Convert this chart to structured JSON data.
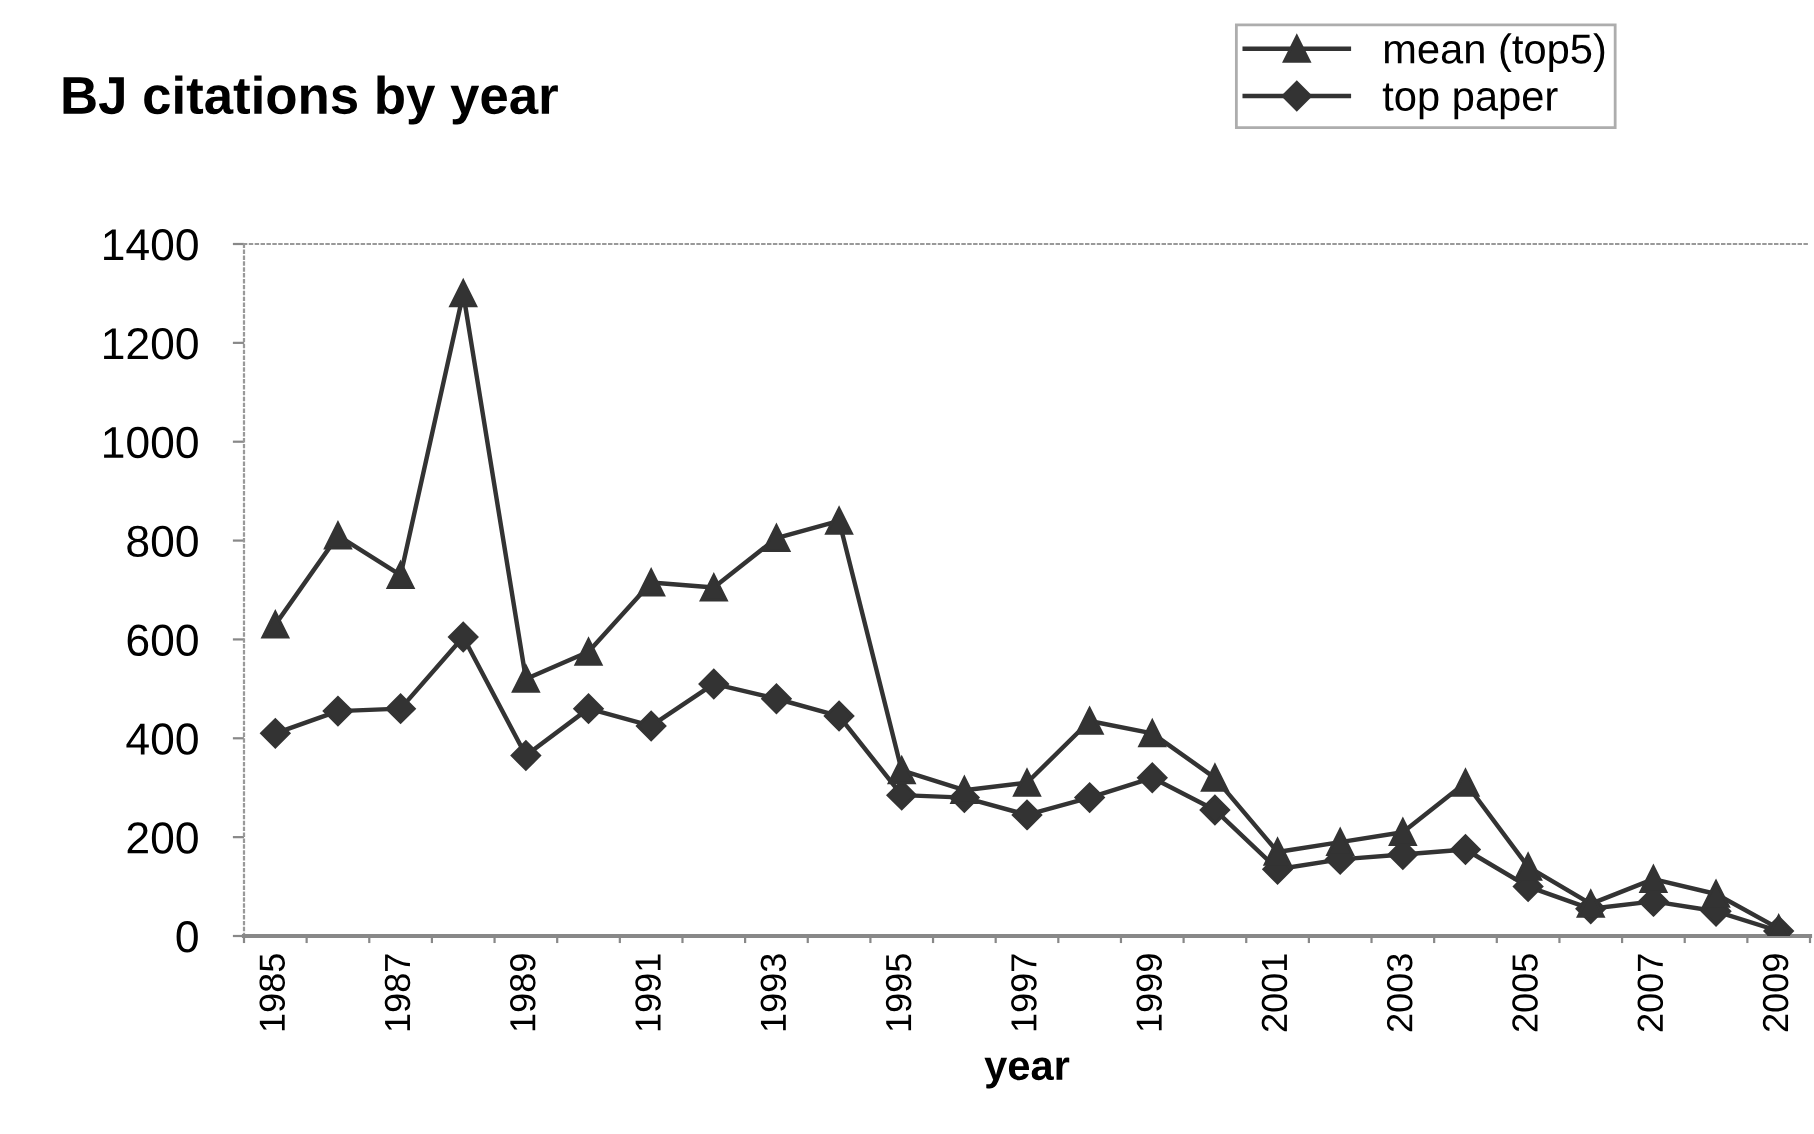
{
  "chart_data": {
    "type": "line",
    "title": "BJ citations by year",
    "xlabel": "year",
    "categories": [
      "1985",
      null,
      "1987",
      null,
      "1989",
      null,
      "1991",
      null,
      "1993",
      null,
      "1995",
      null,
      "1997",
      null,
      "1999",
      null,
      "2001",
      null,
      "2003",
      null,
      "2005",
      null,
      "2007",
      null,
      "2009"
    ],
    "series": [
      {
        "name": "mean (top5)",
        "color": "#333333",
        "marker": "triangle",
        "values": [
          630,
          810,
          730,
          1300,
          520,
          575,
          715,
          705,
          805,
          840,
          335,
          295,
          310,
          435,
          410,
          320,
          170,
          190,
          210,
          310,
          140,
          65,
          115,
          85,
          15
        ]
      },
      {
        "name": "top paper",
        "color": "#333333",
        "marker": "diamond",
        "values": [
          410,
          455,
          460,
          605,
          365,
          460,
          425,
          510,
          480,
          445,
          285,
          280,
          245,
          280,
          320,
          255,
          135,
          155,
          165,
          175,
          100,
          55,
          70,
          50,
          10
        ]
      }
    ],
    "ylim": [
      0,
      1400
    ],
    "yticks": [
      0,
      200,
      400,
      600,
      800,
      1000,
      1200,
      1400
    ],
    "grid": false,
    "legend": "top right"
  }
}
